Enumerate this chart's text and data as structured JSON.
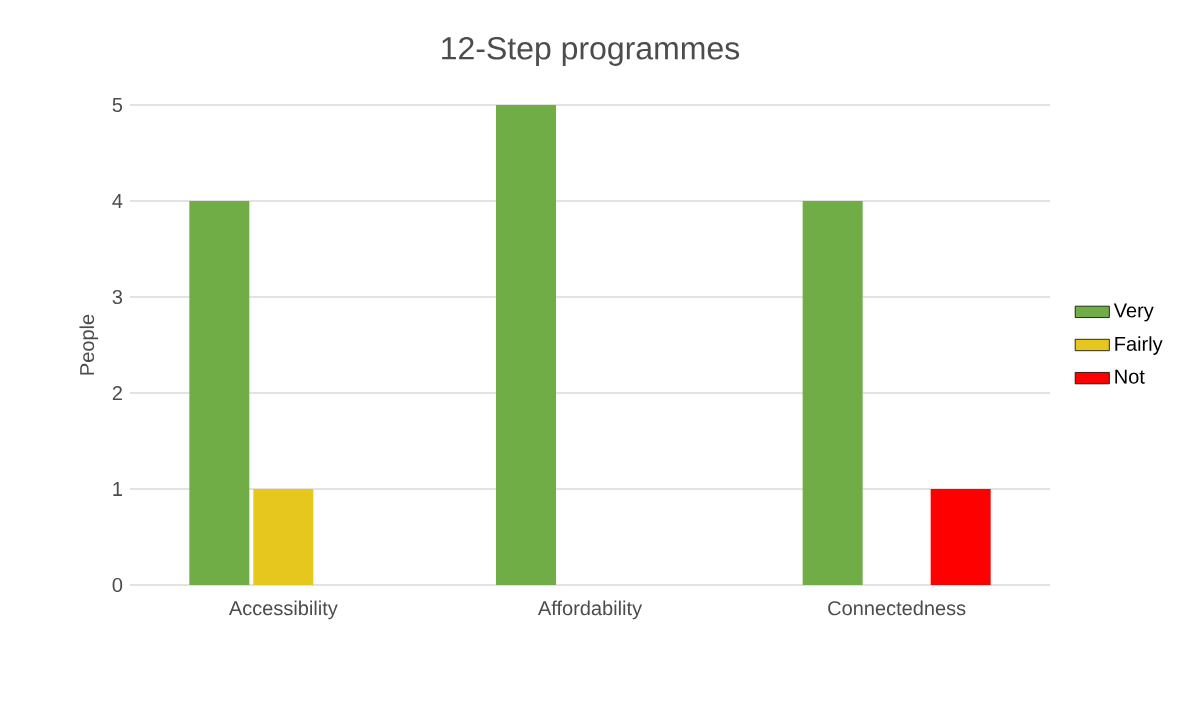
{
  "chart_data": {
    "type": "bar",
    "title": "12-Step programmes",
    "ylabel": "People",
    "categories": [
      "Accessibility",
      "Affordability",
      "Connectedness"
    ],
    "series": [
      {
        "name": "Very",
        "color": "#70ad47",
        "values": [
          4,
          5,
          4
        ]
      },
      {
        "name": "Fairly",
        "color": "#e6c71e",
        "values": [
          1,
          0,
          0
        ]
      },
      {
        "name": "Not",
        "color": "#ff0000",
        "values": [
          0,
          0,
          1
        ]
      }
    ],
    "ylim": [
      0,
      5
    ],
    "yticks": [
      0,
      1,
      2,
      3,
      4,
      5
    ],
    "grid": "y",
    "legend": "right"
  }
}
